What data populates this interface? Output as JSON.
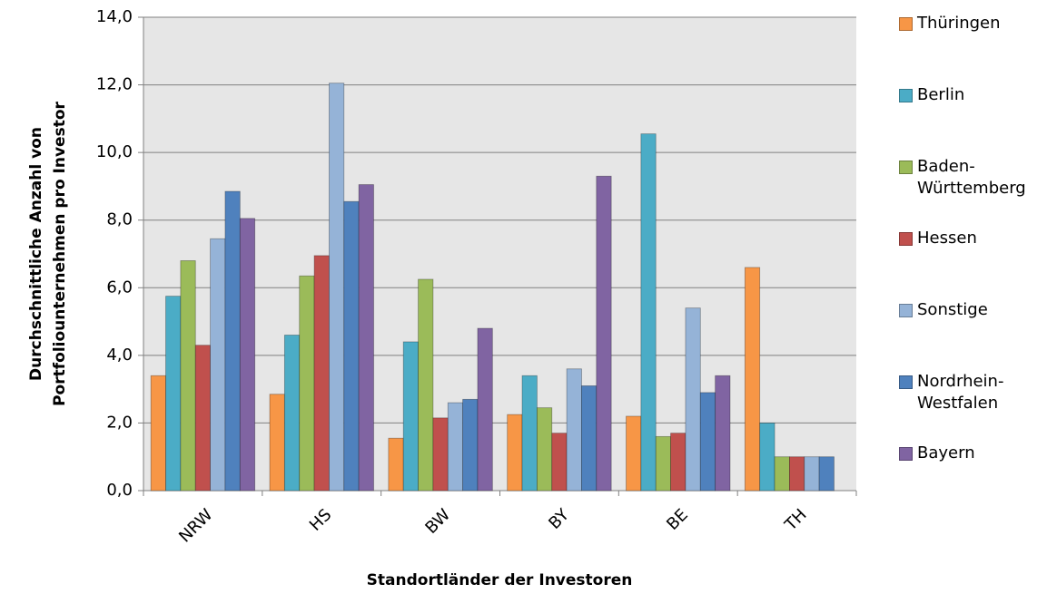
{
  "chart_data": {
    "type": "bar",
    "ylabel": [
      "Durchschnittliche Anzahl von",
      "Portfoliounternehmen pro Investor"
    ],
    "xlabel": "Standortländer der Investoren",
    "categories": [
      "NRW",
      "HS",
      "BW",
      "BY",
      "BE",
      "TH"
    ],
    "series": [
      {
        "name": "Thüringen",
        "color": "#f79646",
        "values": [
          3.4,
          2.85,
          1.55,
          2.25,
          2.2,
          6.6
        ]
      },
      {
        "name": "Berlin",
        "color": "#4bacc6",
        "values": [
          5.75,
          4.6,
          4.4,
          3.4,
          10.55,
          2.0
        ]
      },
      {
        "name": "Baden-Württemberg",
        "color": "#9bbb59",
        "values": [
          6.8,
          6.35,
          6.25,
          2.45,
          1.6,
          1.0
        ]
      },
      {
        "name": "Hessen",
        "color": "#c0504d",
        "values": [
          4.3,
          6.95,
          2.15,
          1.7,
          1.7,
          1.0
        ]
      },
      {
        "name": "Sonstige",
        "color": "#95b3d7",
        "values": [
          7.45,
          12.05,
          2.6,
          3.6,
          5.4,
          1.0
        ]
      },
      {
        "name": "Nordrhein-Westfalen",
        "color": "#4f81bd",
        "values": [
          8.85,
          8.55,
          2.7,
          3.1,
          2.9,
          1.0
        ]
      },
      {
        "name": "Bayern",
        "color": "#8064a2",
        "values": [
          8.05,
          9.05,
          4.8,
          9.3,
          3.4,
          null
        ]
      }
    ],
    "ylim": [
      0,
      14
    ],
    "yticks": [
      {
        "value": 0,
        "label": "0,0"
      },
      {
        "value": 2,
        "label": "2,0"
      },
      {
        "value": 4,
        "label": "4,0"
      },
      {
        "value": 6,
        "label": "6,0"
      },
      {
        "value": 8,
        "label": "8,0"
      },
      {
        "value": 10,
        "label": "10,0"
      },
      {
        "value": 12,
        "label": "12,0"
      },
      {
        "value": 14,
        "label": "14,0"
      }
    ],
    "grid": true
  }
}
